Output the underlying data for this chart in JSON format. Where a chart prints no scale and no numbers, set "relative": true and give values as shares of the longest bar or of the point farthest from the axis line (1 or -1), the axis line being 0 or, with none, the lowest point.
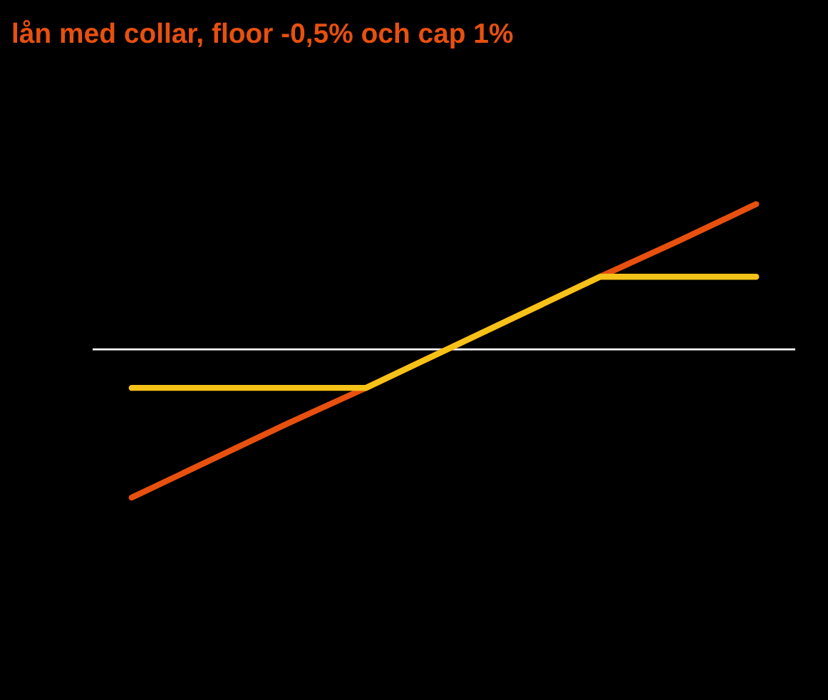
{
  "chart_data": {
    "type": "line",
    "title": "lån med collar, floor -0,5% och cap 1%",
    "relative": true,
    "categories": [
      null,
      null,
      null,
      null,
      null,
      null,
      null,
      null,
      null
    ],
    "series": [
      {
        "color": "#e8500f",
        "values": [
          -1,
          -0.75,
          -0.5,
          -0.26,
          -0.01,
          0.24,
          0.49,
          0.73,
          0.98
        ]
      },
      {
        "color": "#f5c218",
        "values": [
          -0.26,
          -0.26,
          -0.26,
          -0.26,
          -0.01,
          0.24,
          0.49,
          0.49,
          0.49
        ]
      }
    ],
    "grid": false,
    "legend": false,
    "marker": "none",
    "line_style": "solid"
  }
}
